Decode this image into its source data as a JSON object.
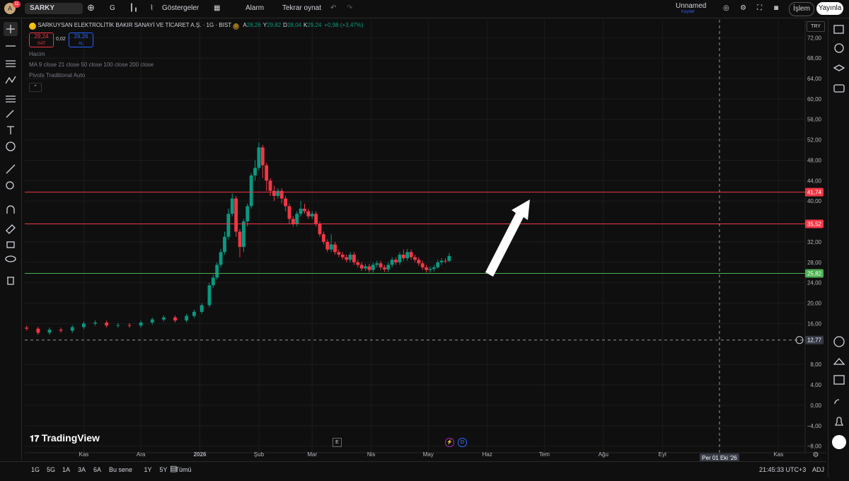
{
  "ui": {
    "topbar": {
      "avatar": "A",
      "badge": "11",
      "symbol": "SARKY",
      "interval": "G",
      "indicators": "Göstergeler",
      "alert": "Alarm",
      "replay": "Tekrar oynat",
      "layout_name": "Unnamed",
      "save_status": "Kaydet",
      "trade": "İşlem",
      "publish": "Yayınla"
    },
    "legend": {
      "title": "SARKUYSAN ELEKTROLİTİK BAKIR SANAYİ VE TİCARET A.Ş. · 1G · BIST",
      "badge": "D",
      "ohlc": [
        {
          "key": "A",
          "text": "28,26"
        },
        {
          "key": "Y",
          "text": "29,82"
        },
        {
          "key": "D",
          "text": "28,04"
        },
        {
          "key": "K",
          "text": "29,24"
        }
      ],
      "change": "+0,98 (+3,47%)",
      "sell_price": "29,24",
      "sell_label": "SAT",
      "spread": "0,02",
      "buy_price": "29,26",
      "buy_label": "AL",
      "indicators": [
        "Hacim",
        "MA 9 close 21 close 50 close 100 close 200 close",
        "Pivots Traditional Auto"
      ]
    },
    "currency": "TRY",
    "brand": "TradingView",
    "markers": [
      "E",
      "D"
    ],
    "bottom": {
      "ranges": [
        "1G",
        "5G",
        "1A",
        "3A",
        "6A",
        "Bu sene",
        "1Y",
        "5Y",
        "Tümü"
      ],
      "clock": "21:45:33 UTC+3",
      "adj": "ADJ"
    }
  },
  "chart_data": {
    "type": "candlestick",
    "up_color": "#089981",
    "down_color": "#f23645",
    "x": [
      -30,
      -24,
      -18,
      -12,
      -6,
      0,
      6,
      12,
      18,
      24,
      30,
      36,
      42,
      48,
      54,
      58,
      62,
      66,
      68,
      70,
      72,
      74,
      76,
      78,
      80,
      82,
      84,
      86,
      88,
      90,
      92,
      94,
      96,
      98,
      100,
      102,
      104,
      106,
      108,
      110,
      112,
      114,
      116,
      118,
      120,
      122,
      124,
      126,
      128,
      130,
      132,
      134,
      136,
      138,
      140,
      142,
      144,
      146,
      148,
      150,
      152,
      154,
      156,
      158,
      160,
      162,
      164,
      166,
      168,
      170,
      172,
      174,
      176,
      178,
      180,
      182,
      184,
      186,
      188,
      190,
      192
    ],
    "open": [
      15.2,
      15.0,
      14.2,
      14.8,
      14.6,
      15.3,
      16.0,
      16.2,
      15.6,
      15.7,
      15.6,
      16.2,
      16.8,
      17.2,
      16.6,
      17.5,
      18.3,
      19.6,
      23.5,
      25.0,
      27.5,
      30.0,
      33.0,
      37.5,
      40.5,
      34.0,
      31.0,
      36.0,
      39.0,
      45.0,
      46.5,
      50.5,
      47.0,
      44.0,
      42.0,
      41.0,
      42.0,
      40.5,
      39.0,
      36.5,
      35.5,
      37.5,
      38.5,
      38.0,
      37.0,
      37.5,
      35.5,
      33.5,
      32.0,
      30.5,
      31.5,
      30.0,
      29.5,
      29.0,
      28.5,
      29.5,
      28.0,
      27.5,
      26.8,
      27.2,
      26.5,
      27.5,
      27.8,
      27.0,
      26.6,
      27.5,
      28.5,
      28.0,
      29.5,
      28.8,
      30.0,
      29.0,
      28.5,
      27.8,
      27.0,
      26.5,
      26.7,
      27.0,
      28.0,
      28.3,
      28.26
    ],
    "high": [
      15.6,
      15.4,
      15.2,
      15.2,
      15.7,
      16.4,
      16.6,
      16.6,
      16.1,
      16.1,
      16.6,
      17.2,
      17.6,
      17.6,
      17.9,
      18.7,
      20.0,
      24.0,
      25.6,
      28.0,
      30.6,
      34.0,
      38.5,
      41.5,
      41.0,
      34.5,
      36.5,
      39.5,
      45.5,
      48.0,
      51.5,
      51.0,
      47.5,
      44.5,
      43.0,
      42.5,
      42.5,
      41.0,
      39.5,
      37.0,
      38.0,
      40.0,
      39.5,
      38.5,
      38.0,
      38.0,
      36.0,
      34.0,
      32.5,
      33.5,
      32.0,
      30.5,
      30.0,
      29.5,
      30.0,
      30.0,
      28.5,
      28.0,
      27.7,
      27.7,
      28.0,
      28.3,
      28.3,
      27.5,
      28.0,
      29.0,
      29.0,
      30.0,
      30.5,
      30.6,
      30.5,
      29.5,
      29.0,
      28.3,
      27.5,
      27.2,
      27.5,
      28.5,
      28.8,
      28.8,
      29.82
    ],
    "low": [
      14.6,
      13.8,
      13.8,
      14.2,
      14.2,
      14.9,
      15.6,
      15.2,
      15.2,
      15.2,
      15.2,
      15.8,
      16.4,
      16.2,
      16.2,
      17.1,
      17.9,
      19.2,
      23.0,
      24.6,
      27.0,
      29.5,
      32.5,
      37.0,
      33.0,
      29.0,
      30.0,
      35.0,
      38.5,
      44.0,
      46.0,
      44.5,
      42.0,
      41.0,
      40.0,
      40.5,
      39.5,
      38.0,
      35.5,
      35.0,
      35.0,
      37.0,
      37.5,
      36.5,
      36.5,
      35.0,
      33.0,
      31.5,
      30.0,
      30.0,
      29.5,
      29.0,
      28.5,
      28.0,
      28.0,
      27.5,
      27.0,
      26.3,
      26.3,
      26.0,
      26.0,
      27.0,
      26.5,
      26.1,
      26.1,
      27.0,
      27.5,
      27.5,
      28.3,
      28.3,
      28.5,
      28.0,
      27.3,
      26.5,
      26.0,
      26.0,
      26.2,
      26.8,
      27.5,
      27.8,
      28.04
    ],
    "close": [
      15.0,
      14.2,
      14.8,
      14.6,
      15.3,
      16.0,
      16.2,
      15.6,
      15.7,
      15.6,
      16.2,
      16.8,
      17.2,
      16.6,
      17.5,
      18.3,
      19.6,
      23.5,
      25.0,
      27.5,
      30.0,
      33.0,
      37.5,
      40.5,
      34.0,
      31.0,
      36.0,
      39.0,
      45.0,
      46.5,
      50.5,
      47.0,
      44.0,
      42.0,
      41.0,
      42.0,
      40.5,
      39.0,
      36.5,
      35.5,
      37.5,
      38.5,
      38.0,
      37.0,
      37.5,
      35.5,
      33.5,
      32.0,
      30.5,
      31.5,
      30.0,
      29.5,
      29.0,
      28.5,
      29.5,
      28.0,
      27.5,
      26.8,
      27.2,
      26.5,
      27.5,
      27.8,
      27.0,
      26.6,
      27.5,
      28.5,
      28.0,
      29.5,
      28.8,
      30.0,
      29.0,
      28.5,
      27.8,
      27.0,
      26.5,
      26.7,
      27.0,
      28.0,
      28.3,
      28.26,
      29.24
    ],
    "xlim": [
      -31,
      379
    ],
    "xticks": [
      {
        "value": 0,
        "label": "Kas"
      },
      {
        "value": 30,
        "label": "Ara"
      },
      {
        "value": 61,
        "label": "2026"
      },
      {
        "value": 92,
        "label": "Şub"
      },
      {
        "value": 120,
        "label": "Mar"
      },
      {
        "value": 151,
        "label": "Nis"
      },
      {
        "value": 181,
        "label": "May"
      },
      {
        "value": 212,
        "label": "Haz"
      },
      {
        "value": 242,
        "label": "Tem"
      },
      {
        "value": 273,
        "label": "Ağu"
      },
      {
        "value": 304,
        "label": "Eyl"
      },
      {
        "value": 365,
        "label": "Kas"
      }
    ],
    "ylim": [
      -9.3,
      75.5
    ],
    "yticks": [
      {
        "value": 72,
        "label": "72,00"
      },
      {
        "value": 68,
        "label": "68,00"
      },
      {
        "value": 64,
        "label": "64,00"
      },
      {
        "value": 60,
        "label": "60,00"
      },
      {
        "value": 56,
        "label": "56,00"
      },
      {
        "value": 52,
        "label": "52,00"
      },
      {
        "value": 48,
        "label": "48,00"
      },
      {
        "value": 44,
        "label": "44,00"
      },
      {
        "value": 40,
        "label": "40,00"
      },
      {
        "value": 32,
        "label": "32,00"
      },
      {
        "value": 28,
        "label": "28,00"
      },
      {
        "value": 24,
        "label": "24,00"
      },
      {
        "value": 20,
        "label": "20,00"
      },
      {
        "value": 16,
        "label": "16,00"
      },
      {
        "value": 8,
        "label": "8,00"
      },
      {
        "value": 4,
        "label": "4,00"
      },
      {
        "value": 0,
        "label": "0,00"
      },
      {
        "value": -4,
        "label": "−4,00"
      },
      {
        "value": -8,
        "label": "−8,00"
      }
    ],
    "grid": true,
    "hlines": [
      {
        "value": 41.74,
        "label": "41,74",
        "color": "#f23645"
      },
      {
        "value": 35.52,
        "label": "35,52",
        "color": "#f23645"
      },
      {
        "value": 25.82,
        "label": "25,82",
        "color": "#4caf50"
      }
    ],
    "crosshair": {
      "x": {
        "value": 334,
        "label": "Per 01 Eki '26"
      },
      "y": {
        "value": 12.77,
        "label": "12,77"
      }
    }
  }
}
